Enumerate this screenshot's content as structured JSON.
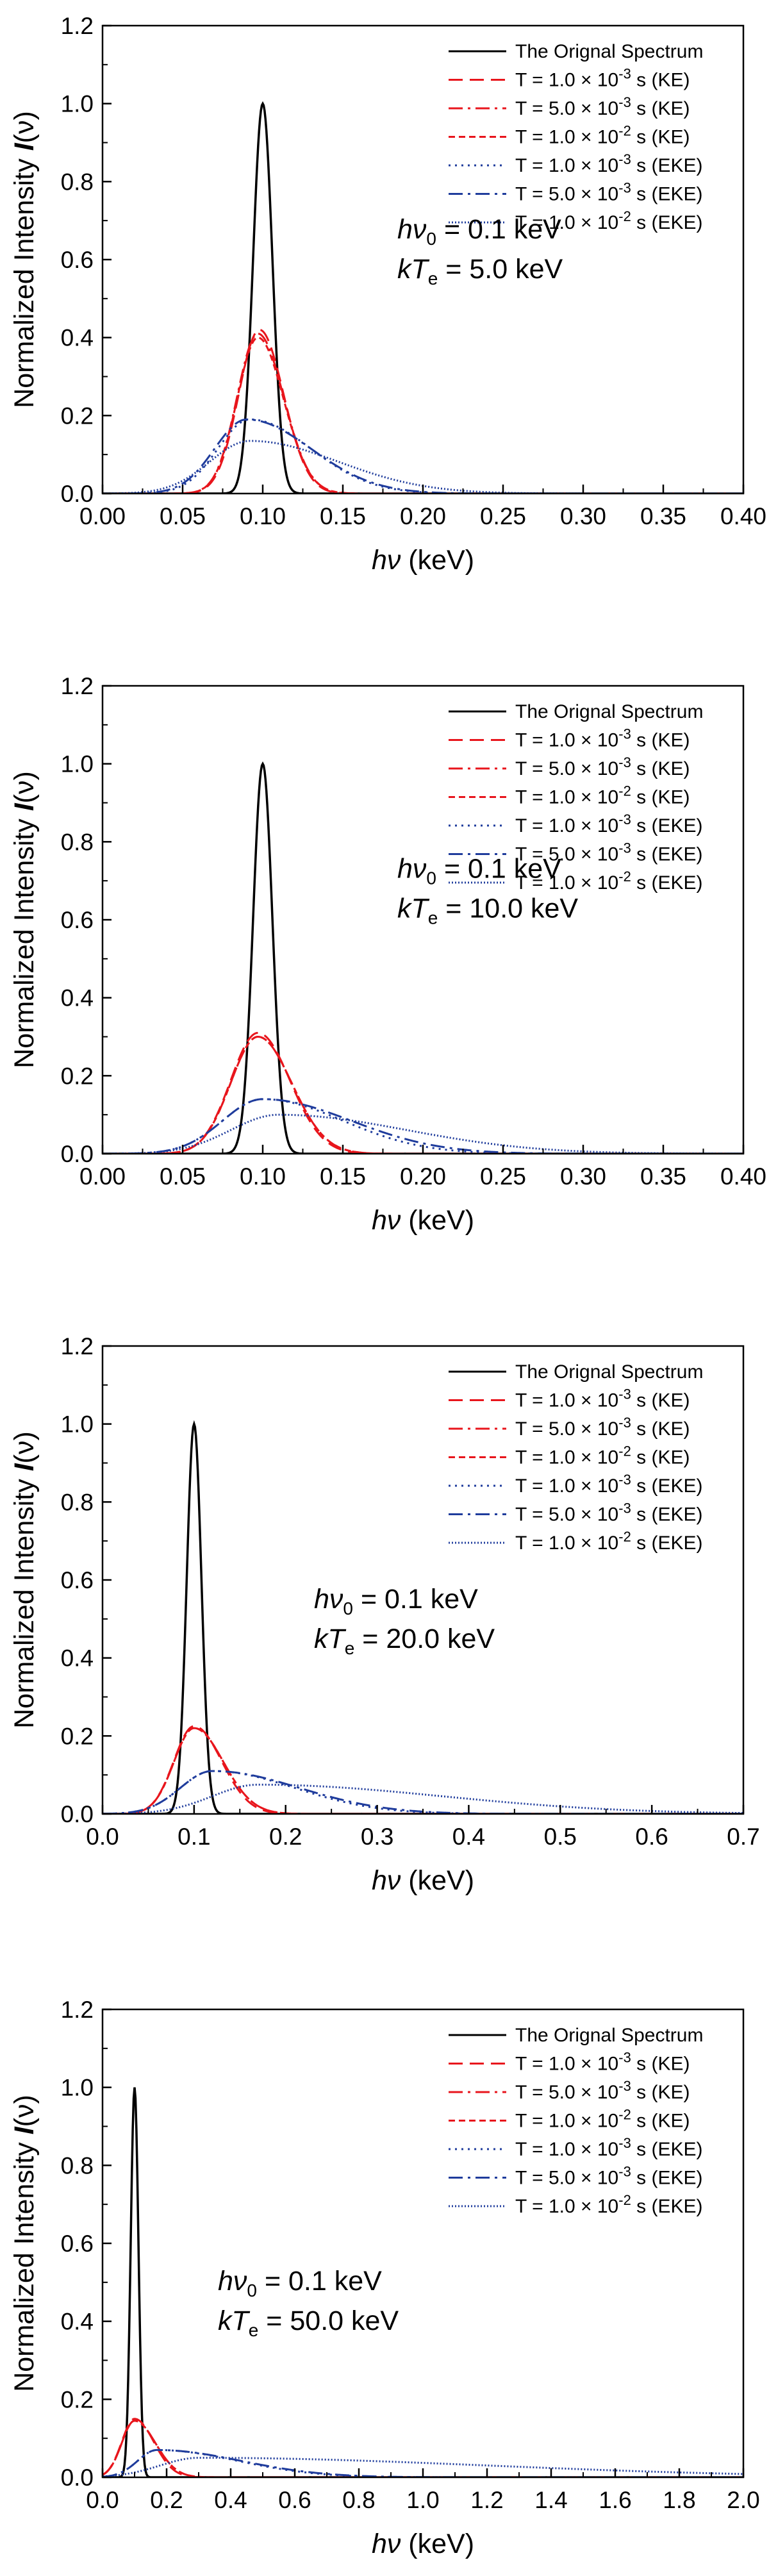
{
  "colors": {
    "original": "#000000",
    "ke": "#e8151c",
    "eke": "#1f3c9c",
    "axis": "#000000",
    "background": "#ffffff"
  },
  "legend": [
    {
      "name": "original",
      "text": "The Orignal Spectrum",
      "family": "original",
      "dash": "solid"
    },
    {
      "name": "ke-1e-3",
      "prefix": "T = 1.0 × 10",
      "exp": "-3",
      "suffix": " s (KE)",
      "family": "ke",
      "dash": "dash"
    },
    {
      "name": "ke-5e-3",
      "prefix": "T = 5.0 × 10",
      "exp": "-3",
      "suffix": " s (KE)",
      "family": "ke",
      "dash": "dashdot"
    },
    {
      "name": "ke-1e-2",
      "prefix": "T = 1.0 × 10",
      "exp": "-2",
      "suffix": " s (KE)",
      "family": "ke",
      "dash": "shortdash"
    },
    {
      "name": "eke-1e-3",
      "prefix": "T = 1.0 × 10",
      "exp": "-3",
      "suffix": " s (EKE)",
      "family": "eke",
      "dash": "dot"
    },
    {
      "name": "eke-5e-3",
      "prefix": "T = 5.0 × 10",
      "exp": "-3",
      "suffix": " s (EKE)",
      "family": "eke",
      "dash": "dashdot"
    },
    {
      "name": "eke-1e-2",
      "prefix": "T = 1.0 × 10",
      "exp": "-2",
      "suffix": " s (EKE)",
      "family": "eke",
      "dash": "shortdot"
    }
  ],
  "chart_data": [
    {
      "type": "line",
      "ylabel": "Normalized Intensity",
      "ylabel_symbol": "I",
      "ylabel_arg": "(ν)",
      "xlabel_symbol": "hν",
      "xlabel_unit": "(keV)",
      "annotation": {
        "hnu_label": "hν",
        "hnu_sub": "0",
        "hnu_value": " = 0.1 keV",
        "kt_label": "kT",
        "kt_sub": "e",
        "kt_value": " = 5.0 keV"
      },
      "xlim": [
        0,
        0.4
      ],
      "ylim": [
        0,
        1.2
      ],
      "xticks": [
        "0.00",
        "0.05",
        "0.10",
        "0.15",
        "0.20",
        "0.25",
        "0.30",
        "0.35",
        "0.40"
      ],
      "yticks": [
        "0.0",
        "0.2",
        "0.4",
        "0.6",
        "0.8",
        "1.0",
        "1.2"
      ],
      "series": [
        {
          "name": "The Orignal Spectrum",
          "peak_x": 0.1,
          "peak_y": 1.0,
          "sigma_left": 0.006,
          "sigma_right": 0.006
        },
        {
          "name": "T = 1.0 × 10^-3 s (KE)",
          "peak_x": 0.098,
          "peak_y": 0.42,
          "sigma_left": 0.013,
          "sigma_right": 0.015
        },
        {
          "name": "T = 5.0 × 10^-3 s (KE)",
          "peak_x": 0.097,
          "peak_y": 0.41,
          "sigma_left": 0.013,
          "sigma_right": 0.016
        },
        {
          "name": "T = 1.0 × 10^-2 s (KE)",
          "peak_x": 0.097,
          "peak_y": 0.4,
          "sigma_left": 0.013,
          "sigma_right": 0.016
        },
        {
          "name": "T = 1.0 × 10^-3 s (EKE)",
          "peak_x": 0.092,
          "peak_y": 0.19,
          "sigma_left": 0.02,
          "sigma_right": 0.038
        },
        {
          "name": "T = 5.0 × 10^-3 s (EKE)",
          "peak_x": 0.09,
          "peak_y": 0.19,
          "sigma_left": 0.02,
          "sigma_right": 0.04
        },
        {
          "name": "T = 1.0 × 10^-2 s (EKE)",
          "peak_x": 0.092,
          "peak_y": 0.135,
          "sigma_left": 0.025,
          "sigma_right": 0.055
        }
      ]
    },
    {
      "type": "line",
      "ylabel": "Normalized Intensity",
      "ylabel_symbol": "I",
      "ylabel_arg": "(ν)",
      "xlabel_symbol": "hν",
      "xlabel_unit": "(keV)",
      "annotation": {
        "hnu_label": "hν",
        "hnu_sub": "0",
        "hnu_value": " = 0.1 keV",
        "kt_label": "kT",
        "kt_sub": "e",
        "kt_value": " = 10.0 keV"
      },
      "xlim": [
        0,
        0.4
      ],
      "ylim": [
        0,
        1.2
      ],
      "xticks": [
        "0.00",
        "0.05",
        "0.10",
        "0.15",
        "0.20",
        "0.25",
        "0.30",
        "0.35",
        "0.40"
      ],
      "yticks": [
        "0.0",
        "0.2",
        "0.4",
        "0.6",
        "0.8",
        "1.0",
        "1.2"
      ],
      "series": [
        {
          "name": "The Orignal Spectrum",
          "peak_x": 0.1,
          "peak_y": 1.0,
          "sigma_left": 0.006,
          "sigma_right": 0.006
        },
        {
          "name": "T = 1.0 × 10^-3 s (KE)",
          "peak_x": 0.097,
          "peak_y": 0.31,
          "sigma_left": 0.017,
          "sigma_right": 0.02
        },
        {
          "name": "T = 5.0 × 10^-3 s (KE)",
          "peak_x": 0.097,
          "peak_y": 0.3,
          "sigma_left": 0.017,
          "sigma_right": 0.021
        },
        {
          "name": "T = 1.0 × 10^-2 s (KE)",
          "peak_x": 0.097,
          "peak_y": 0.3,
          "sigma_left": 0.017,
          "sigma_right": 0.021
        },
        {
          "name": "T = 1.0 × 10^-3 s (EKE)",
          "peak_x": 0.1,
          "peak_y": 0.14,
          "sigma_left": 0.025,
          "sigma_right": 0.05
        },
        {
          "name": "T = 5.0 × 10^-3 s (EKE)",
          "peak_x": 0.1,
          "peak_y": 0.14,
          "sigma_left": 0.025,
          "sigma_right": 0.055
        },
        {
          "name": "T = 1.0 × 10^-2 s (EKE)",
          "peak_x": 0.11,
          "peak_y": 0.1,
          "sigma_left": 0.03,
          "sigma_right": 0.08
        }
      ]
    },
    {
      "type": "line",
      "ylabel": "Normalized Intensity",
      "ylabel_symbol": "I",
      "ylabel_arg": "(ν)",
      "xlabel_symbol": "hν",
      "xlabel_unit": "(keV)",
      "annotation": {
        "hnu_label": "hν",
        "hnu_sub": "0",
        "hnu_value": " = 0.1 keV",
        "kt_label": "kT",
        "kt_sub": "e",
        "kt_value": " = 20.0 keV"
      },
      "xlim": [
        0,
        0.7
      ],
      "ylim": [
        0,
        1.2
      ],
      "xticks": [
        "0.0",
        "0.1",
        "0.2",
        "0.3",
        "0.4",
        "0.5",
        "0.6",
        "0.7"
      ],
      "yticks": [
        "0.0",
        "0.2",
        "0.4",
        "0.6",
        "0.8",
        "1.0",
        "1.2"
      ],
      "series": [
        {
          "name": "The Orignal Spectrum",
          "peak_x": 0.1,
          "peak_y": 1.0,
          "sigma_left": 0.008,
          "sigma_right": 0.008
        },
        {
          "name": "T = 1.0 × 10^-3 s (KE)",
          "peak_x": 0.1,
          "peak_y": 0.225,
          "sigma_left": 0.022,
          "sigma_right": 0.03
        },
        {
          "name": "T = 5.0 × 10^-3 s (KE)",
          "peak_x": 0.1,
          "peak_y": 0.22,
          "sigma_left": 0.022,
          "sigma_right": 0.032
        },
        {
          "name": "T = 1.0 × 10^-2 s (KE)",
          "peak_x": 0.1,
          "peak_y": 0.22,
          "sigma_left": 0.022,
          "sigma_right": 0.032
        },
        {
          "name": "T = 1.0 × 10^-3 s (EKE)",
          "peak_x": 0.12,
          "peak_y": 0.11,
          "sigma_left": 0.035,
          "sigma_right": 0.09
        },
        {
          "name": "T = 5.0 × 10^-3 s (EKE)",
          "peak_x": 0.12,
          "peak_y": 0.11,
          "sigma_left": 0.035,
          "sigma_right": 0.095
        },
        {
          "name": "T = 1.0 × 10^-2 s (EKE)",
          "peak_x": 0.17,
          "peak_y": 0.075,
          "sigma_left": 0.05,
          "sigma_right": 0.2
        }
      ]
    },
    {
      "type": "line",
      "ylabel": "Normalized Intensity",
      "ylabel_symbol": "I",
      "ylabel_arg": "(ν)",
      "xlabel_symbol": "hν",
      "xlabel_unit": "(keV)",
      "annotation": {
        "hnu_label": "hν",
        "hnu_sub": "0",
        "hnu_value": " = 0.1 keV",
        "kt_label": "kT",
        "kt_sub": "e",
        "kt_value": " = 50.0 keV"
      },
      "xlim": [
        0,
        2.0
      ],
      "ylim": [
        0,
        1.2
      ],
      "xticks": [
        "0.0",
        "0.2",
        "0.4",
        "0.6",
        "0.8",
        "1.0",
        "1.2",
        "1.4",
        "1.6",
        "1.8",
        "2.0"
      ],
      "yticks": [
        "0.0",
        "0.2",
        "0.4",
        "0.6",
        "0.8",
        "1.0",
        "1.2"
      ],
      "series": [
        {
          "name": "The Orignal Spectrum",
          "peak_x": 0.1,
          "peak_y": 1.0,
          "sigma_left": 0.012,
          "sigma_right": 0.012
        },
        {
          "name": "T = 1.0 × 10^-3 s (KE)",
          "peak_x": 0.1,
          "peak_y": 0.15,
          "sigma_left": 0.04,
          "sigma_right": 0.06
        },
        {
          "name": "T = 5.0 × 10^-3 s (KE)",
          "peak_x": 0.1,
          "peak_y": 0.145,
          "sigma_left": 0.04,
          "sigma_right": 0.065
        },
        {
          "name": "T = 1.0 × 10^-2 s (KE)",
          "peak_x": 0.1,
          "peak_y": 0.145,
          "sigma_left": 0.04,
          "sigma_right": 0.065
        },
        {
          "name": "T = 1.0 × 10^-3 s (EKE)",
          "peak_x": 0.17,
          "peak_y": 0.07,
          "sigma_left": 0.06,
          "sigma_right": 0.25
        },
        {
          "name": "T = 5.0 × 10^-3 s (EKE)",
          "peak_x": 0.17,
          "peak_y": 0.07,
          "sigma_left": 0.06,
          "sigma_right": 0.26
        },
        {
          "name": "T = 1.0 × 10^-2 s (EKE)",
          "peak_x": 0.3,
          "peak_y": 0.05,
          "sigma_left": 0.12,
          "sigma_right": 0.9
        }
      ]
    }
  ]
}
